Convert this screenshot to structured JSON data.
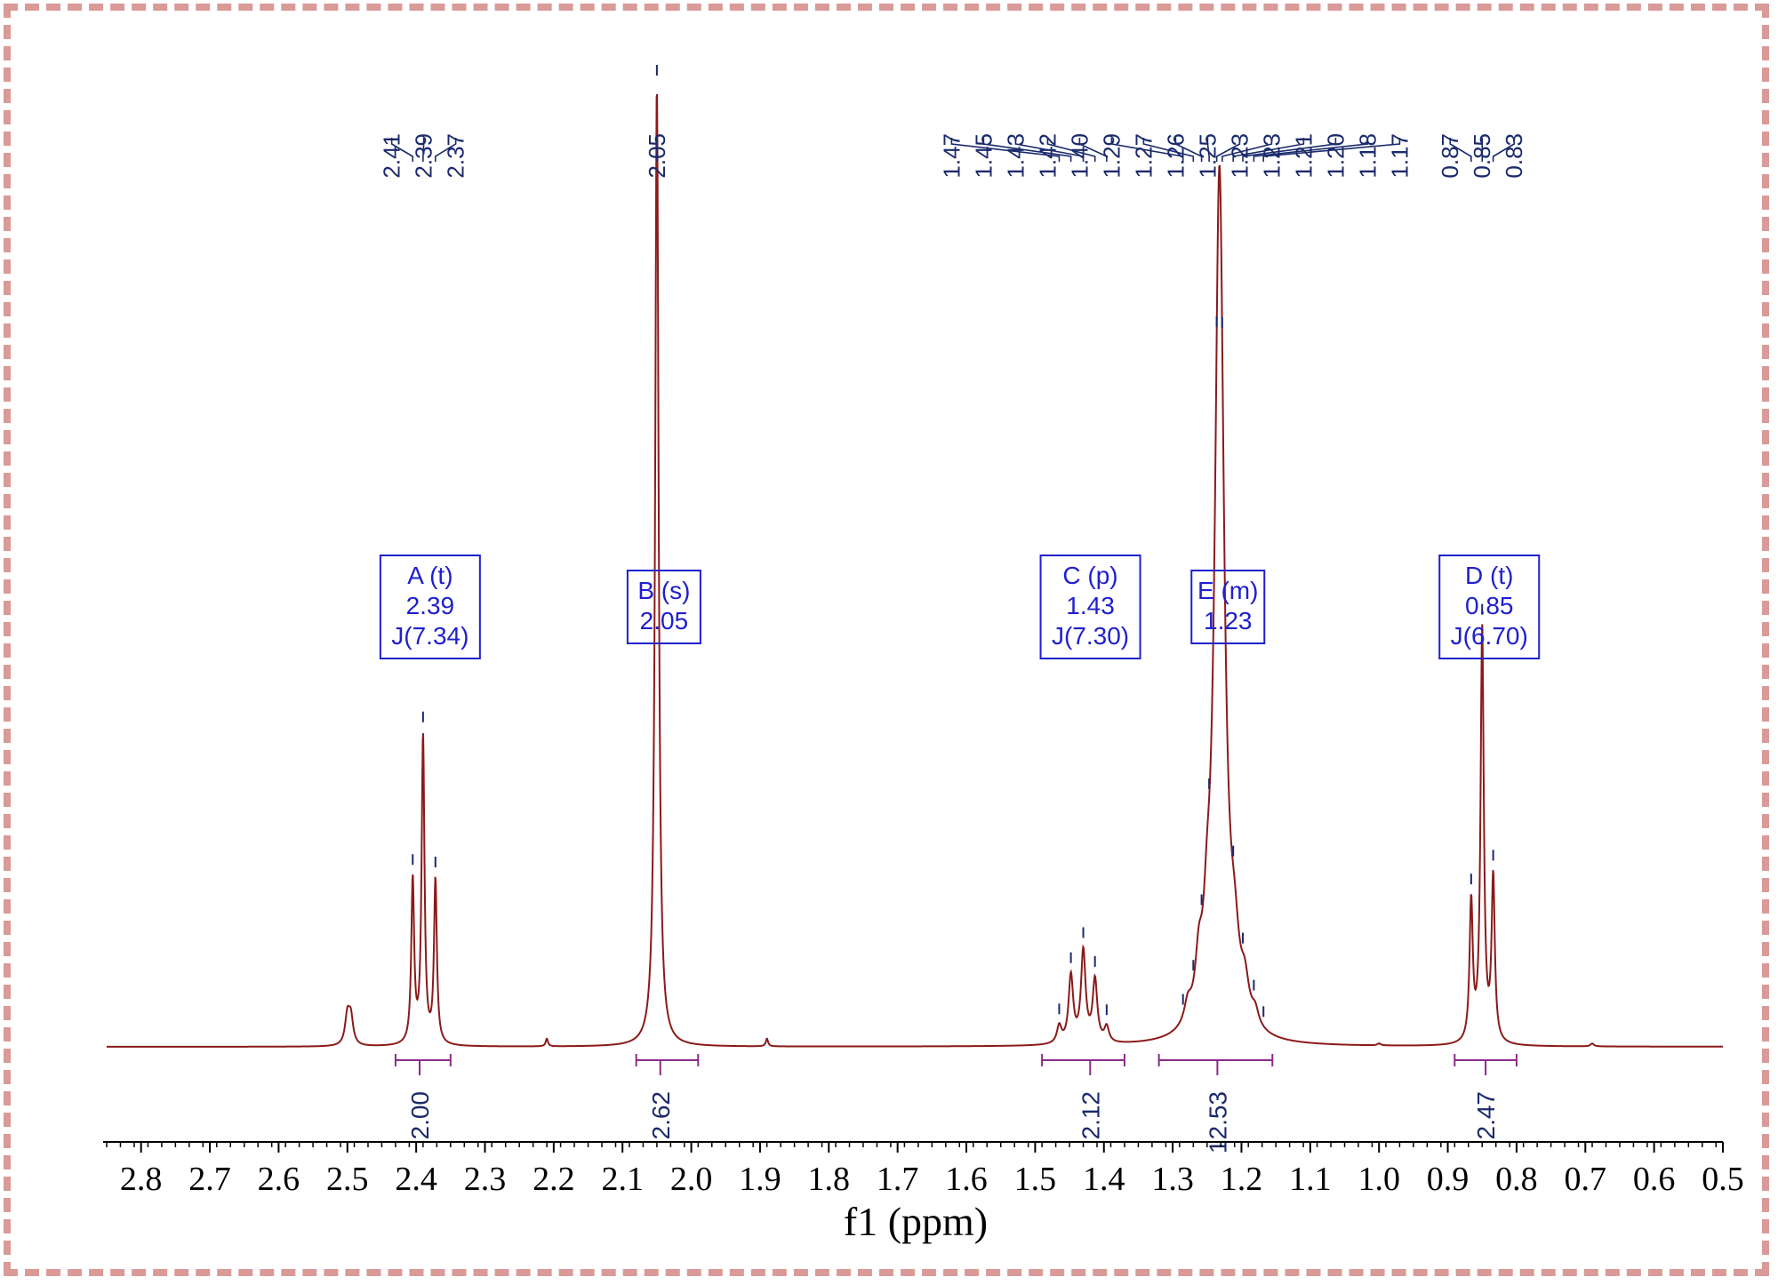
{
  "colors": {
    "trace": "#8b1a1a",
    "peak_label": "#1a2a6c",
    "multiplet_box": "#1f1fcf",
    "integral": "#8b2a8b",
    "frame": "#d99a98"
  },
  "chart_data": {
    "type": "line",
    "title": "",
    "xlabel": "f1 (ppm)",
    "ylabel": "",
    "xlim": [
      2.85,
      0.5
    ],
    "x_reversed": true,
    "grid": false,
    "x_ticks": [
      "2.8",
      "2.7",
      "2.6",
      "2.5",
      "2.4",
      "2.3",
      "2.2",
      "2.1",
      "2.0",
      "1.9",
      "1.8",
      "1.7",
      "1.6",
      "1.5",
      "1.4",
      "1.3",
      "1.2",
      "1.1",
      "1.0",
      "0.9",
      "0.8",
      "0.7",
      "0.6",
      "0.5"
    ],
    "peaks": [
      {
        "ppm": 2.5,
        "height": 0.03,
        "width": 0.004
      },
      {
        "ppm": 2.495,
        "height": 0.028,
        "width": 0.004
      },
      {
        "ppm": 2.405,
        "height": 0.17,
        "width": 0.0025
      },
      {
        "ppm": 2.39,
        "height": 0.32,
        "width": 0.0025
      },
      {
        "ppm": 2.372,
        "height": 0.17,
        "width": 0.0025
      },
      {
        "ppm": 2.21,
        "height": 0.008,
        "width": 0.002
      },
      {
        "ppm": 2.05,
        "height": 1.0,
        "width": 0.003
      },
      {
        "ppm": 1.89,
        "height": 0.008,
        "width": 0.002
      },
      {
        "ppm": 1.465,
        "height": 0.018,
        "width": 0.004
      },
      {
        "ppm": 1.448,
        "height": 0.07,
        "width": 0.004
      },
      {
        "ppm": 1.43,
        "height": 0.095,
        "width": 0.004
      },
      {
        "ppm": 1.413,
        "height": 0.065,
        "width": 0.004
      },
      {
        "ppm": 1.396,
        "height": 0.016,
        "width": 0.004
      },
      {
        "ppm": 1.278,
        "height": 0.02,
        "width": 0.006
      },
      {
        "ppm": 1.262,
        "height": 0.05,
        "width": 0.006
      },
      {
        "ppm": 1.25,
        "height": 0.06,
        "width": 0.006
      },
      {
        "ppm": 1.232,
        "height": 0.9,
        "width": 0.008
      },
      {
        "ppm": 1.21,
        "height": 0.06,
        "width": 0.008
      },
      {
        "ppm": 1.195,
        "height": 0.035,
        "width": 0.007
      },
      {
        "ppm": 1.18,
        "height": 0.015,
        "width": 0.006
      },
      {
        "ppm": 1.0,
        "height": 0.002,
        "width": 0.003
      },
      {
        "ppm": 0.866,
        "height": 0.145,
        "width": 0.0028
      },
      {
        "ppm": 0.85,
        "height": 0.43,
        "width": 0.0028
      },
      {
        "ppm": 0.834,
        "height": 0.17,
        "width": 0.0028
      },
      {
        "ppm": 0.69,
        "height": 0.003,
        "width": 0.003
      }
    ],
    "peak_labels": [
      {
        "text": "2.41",
        "ppm": 2.405
      },
      {
        "text": "2.39",
        "ppm": 2.39
      },
      {
        "text": "2.37",
        "ppm": 2.372
      },
      {
        "text": "2.05",
        "ppm": 2.05
      },
      {
        "text": "1.47",
        "ppm": 1.465
      },
      {
        "text": "1.45",
        "ppm": 1.448
      },
      {
        "text": "1.43",
        "ppm": 1.43
      },
      {
        "text": "1.42",
        "ppm": 1.413
      },
      {
        "text": "1.40",
        "ppm": 1.396
      },
      {
        "text": "1.29",
        "ppm": 1.285
      },
      {
        "text": "1.27",
        "ppm": 1.27
      },
      {
        "text": "1.26",
        "ppm": 1.258
      },
      {
        "text": "1.25",
        "ppm": 1.247
      },
      {
        "text": "1.23",
        "ppm": 1.236
      },
      {
        "text": "1.23",
        "ppm": 1.228
      },
      {
        "text": "1.21",
        "ppm": 1.212
      },
      {
        "text": "1.20",
        "ppm": 1.198
      },
      {
        "text": "1.18",
        "ppm": 1.182
      },
      {
        "text": "1.17",
        "ppm": 1.168
      },
      {
        "text": "0.87",
        "ppm": 0.866
      },
      {
        "text": "0.85",
        "ppm": 0.85
      },
      {
        "text": "0.83",
        "ppm": 0.834
      }
    ],
    "multiplets": [
      {
        "name": "A (t)",
        "shift": "2.39",
        "j": "J(7.34)",
        "ppm": 2.39
      },
      {
        "name": "B (s)",
        "shift": "2.05",
        "j": "",
        "ppm": 2.05
      },
      {
        "name": "C (p)",
        "shift": "1.43",
        "j": "J(7.30)",
        "ppm": 1.43
      },
      {
        "name": "E (m)",
        "shift": "1.23",
        "j": "",
        "ppm": 1.23
      },
      {
        "name": "D (t)",
        "shift": "0.85",
        "j": "J(6.70)",
        "ppm": 0.85
      }
    ],
    "integrals": [
      {
        "value": "2.00",
        "from": 2.43,
        "to": 2.35,
        "center": 2.395
      },
      {
        "value": "2.62",
        "from": 2.08,
        "to": 1.99,
        "center": 2.045
      },
      {
        "value": "2.12",
        "from": 1.49,
        "to": 1.37,
        "center": 1.42
      },
      {
        "value": "12.53",
        "from": 1.32,
        "to": 1.155,
        "center": 1.235
      },
      {
        "value": "2.47",
        "from": 0.89,
        "to": 0.8,
        "center": 0.845
      }
    ]
  }
}
